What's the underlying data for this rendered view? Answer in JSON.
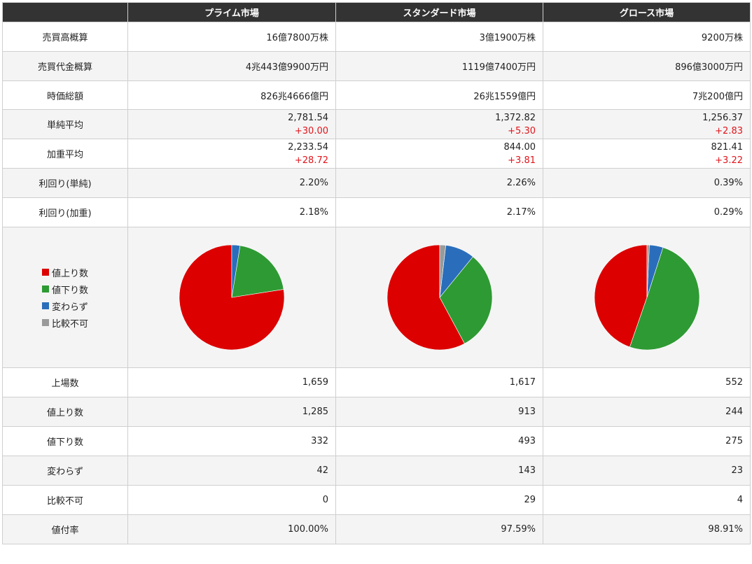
{
  "header": {
    "columns": [
      "",
      "プライム市場",
      "スタンダード市場",
      "グロース市場"
    ]
  },
  "colors": {
    "up": "#dc0000",
    "down": "#2e9a33",
    "unchanged": "#2a6ebb",
    "nocompare": "#9a9a9a",
    "change_positive": "#e0151b"
  },
  "rows": {
    "volume": {
      "label": "売買高概算",
      "values": [
        "16億7800万株",
        "3億1900万株",
        "9200万株"
      ]
    },
    "turnover": {
      "label": "売買代金概算",
      "values": [
        "4兆443億9900万円",
        "1119億7400万円",
        "896億3000万円"
      ]
    },
    "market_cap": {
      "label": "時価総額",
      "values": [
        "826兆4666億円",
        "26兆1559億円",
        "7兆200億円"
      ]
    },
    "simple_avg": {
      "label": "単純平均",
      "values": [
        "2,781.54",
        "1,372.82",
        "1,256.37"
      ],
      "changes": [
        "+30.00",
        "+5.30",
        "+2.83"
      ]
    },
    "weighted_avg": {
      "label": "加重平均",
      "values": [
        "2,233.54",
        "844.00",
        "821.41"
      ],
      "changes": [
        "+28.72",
        "+3.81",
        "+3.22"
      ]
    },
    "yield_simple": {
      "label": "利回り(単純)",
      "values": [
        "2.20%",
        "2.26%",
        "0.39%"
      ]
    },
    "yield_weighted": {
      "label": "利回り(加重)",
      "values": [
        "2.18%",
        "2.17%",
        "0.29%"
      ]
    },
    "listed": {
      "label": "上場数",
      "values": [
        "1,659",
        "1,617",
        "552"
      ]
    },
    "advances": {
      "label": "値上り数",
      "values": [
        "1,285",
        "913",
        "244"
      ]
    },
    "declines": {
      "label": "値下り数",
      "values": [
        "332",
        "493",
        "275"
      ]
    },
    "unchanged": {
      "label": "変わらず",
      "values": [
        "42",
        "143",
        "23"
      ]
    },
    "no_compare": {
      "label": "比較不可",
      "values": [
        "0",
        "29",
        "4"
      ]
    },
    "pricing_rate": {
      "label": "値付率",
      "values": [
        "100.00%",
        "97.59%",
        "98.91%"
      ]
    }
  },
  "legend": {
    "items": [
      "値上り数",
      "値下り数",
      "変わらず",
      "比較不可"
    ]
  },
  "chart_data": [
    {
      "type": "pie",
      "categories": [
        "値上り数",
        "値下り数",
        "変わらず",
        "比較不可"
      ],
      "values": [
        1285,
        332,
        42,
        0
      ]
    },
    {
      "type": "pie",
      "categories": [
        "値上り数",
        "値下り数",
        "変わらず",
        "比較不可"
      ],
      "values": [
        913,
        493,
        143,
        29
      ]
    },
    {
      "type": "pie",
      "categories": [
        "値上り数",
        "値下り数",
        "変わらず",
        "比較不可"
      ],
      "values": [
        244,
        275,
        23,
        4
      ]
    }
  ]
}
